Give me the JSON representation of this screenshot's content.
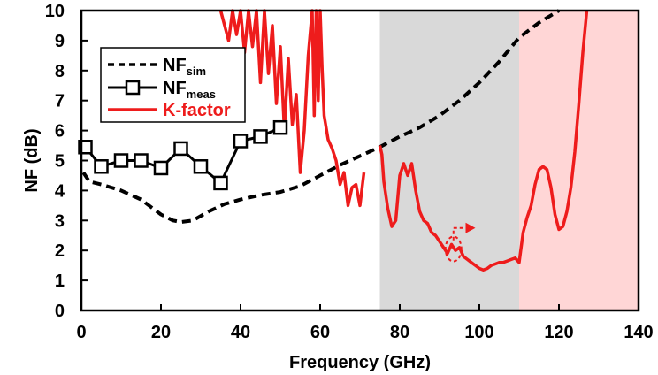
{
  "chart_data": {
    "type": "line",
    "title": "",
    "xlabel": "Frequency (GHz)",
    "ylabel": "NF (dB)",
    "xlim": [
      0,
      140
    ],
    "ylim": [
      0,
      10
    ],
    "xticks": [
      0,
      20,
      40,
      60,
      80,
      100,
      120,
      140
    ],
    "yticks": [
      0,
      1,
      2,
      3,
      4,
      5,
      6,
      7,
      8,
      9,
      10
    ],
    "grid": false,
    "legend_position": "top-left",
    "shaded_regions": [
      {
        "x_start": 75,
        "x_end": 110,
        "color": "#d9d9d9"
      },
      {
        "x_start": 110,
        "x_end": 140,
        "color": "#ffd6d6"
      }
    ],
    "series": [
      {
        "name": "NF",
        "name_sub": "sim",
        "style": "dashed",
        "color": "#000000",
        "points": [
          [
            0.5,
            4.6
          ],
          [
            2,
            4.3
          ],
          [
            5,
            4.2
          ],
          [
            10,
            4.0
          ],
          [
            15,
            3.7
          ],
          [
            20,
            3.2
          ],
          [
            23,
            3.0
          ],
          [
            25,
            2.95
          ],
          [
            28,
            3.0
          ],
          [
            32,
            3.3
          ],
          [
            36,
            3.55
          ],
          [
            40,
            3.7
          ],
          [
            45,
            3.85
          ],
          [
            50,
            3.95
          ],
          [
            55,
            4.15
          ],
          [
            60,
            4.5
          ],
          [
            65,
            4.85
          ],
          [
            70,
            5.15
          ],
          [
            75,
            5.45
          ],
          [
            80,
            5.8
          ],
          [
            85,
            6.1
          ],
          [
            90,
            6.5
          ],
          [
            95,
            7.0
          ],
          [
            100,
            7.6
          ],
          [
            105,
            8.3
          ],
          [
            110,
            9.1
          ],
          [
            115,
            9.6
          ],
          [
            120,
            10.0
          ]
        ]
      },
      {
        "name": "NF",
        "name_sub": "meas",
        "style": "solid-square-markers",
        "color": "#000000",
        "points": [
          [
            1,
            5.45
          ],
          [
            5,
            4.8
          ],
          [
            10,
            5.0
          ],
          [
            15,
            5.0
          ],
          [
            20,
            4.75
          ],
          [
            25,
            5.4
          ],
          [
            30,
            4.8
          ],
          [
            35,
            4.25
          ],
          [
            40,
            5.65
          ],
          [
            45,
            5.8
          ],
          [
            50,
            6.1
          ]
        ]
      },
      {
        "name": "K-factor",
        "name_sub": "",
        "style": "solid",
        "color": "#ee1c1c",
        "segments": [
          [
            [
              35,
              10.0
            ],
            [
              37,
              9.0
            ],
            [
              38,
              10.0
            ],
            [
              39,
              9.2
            ],
            [
              40,
              10.0
            ],
            [
              41,
              8.6
            ],
            [
              42,
              10.0
            ],
            [
              43,
              8.8
            ],
            [
              44,
              10.0
            ],
            [
              45,
              7.6
            ],
            [
              46,
              10.0
            ],
            [
              47,
              7.9
            ],
            [
              48,
              9.5
            ],
            [
              49,
              6.9
            ],
            [
              50,
              8.8
            ],
            [
              51,
              6.0
            ],
            [
              52,
              8.4
            ],
            [
              53,
              6.2
            ],
            [
              54,
              7.2
            ],
            [
              55,
              4.6
            ],
            [
              56,
              6.0
            ],
            [
              57,
              8.5
            ],
            [
              58,
              10.0
            ],
            [
              58.5,
              6.5
            ],
            [
              59,
              10.0
            ],
            [
              59.5,
              7.0
            ],
            [
              60,
              10.0
            ],
            [
              60.5,
              8.0
            ],
            [
              61,
              6.5
            ],
            [
              62,
              5.7
            ],
            [
              63,
              5.4
            ],
            [
              64,
              5.0
            ],
            [
              65,
              4.2
            ],
            [
              66,
              4.6
            ],
            [
              67,
              3.5
            ],
            [
              68,
              4.1
            ],
            [
              69,
              4.2
            ],
            [
              70,
              3.5
            ],
            [
              71,
              4.6
            ]
          ],
          [
            [
              75,
              5.5
            ],
            [
              75.5,
              5.2
            ],
            [
              76,
              4.3
            ],
            [
              77,
              3.4
            ],
            [
              78,
              2.8
            ],
            [
              79,
              3.0
            ],
            [
              80,
              4.5
            ],
            [
              81,
              4.9
            ],
            [
              82,
              4.5
            ],
            [
              83,
              4.9
            ],
            [
              84,
              4.0
            ],
            [
              85,
              3.3
            ],
            [
              86,
              3.0
            ],
            [
              87,
              2.9
            ],
            [
              88,
              2.6
            ],
            [
              89,
              2.5
            ],
            [
              90,
              2.3
            ],
            [
              91,
              2.1
            ],
            [
              92,
              1.9
            ],
            [
              93,
              2.2
            ],
            [
              94,
              2.0
            ],
            [
              95,
              2.1
            ],
            [
              96,
              1.8
            ],
            [
              97,
              1.7
            ],
            [
              98,
              1.6
            ],
            [
              99,
              1.5
            ],
            [
              100,
              1.4
            ],
            [
              101,
              1.35
            ],
            [
              102,
              1.4
            ],
            [
              103,
              1.5
            ],
            [
              104,
              1.55
            ],
            [
              105,
              1.6
            ],
            [
              106,
              1.6
            ],
            [
              107,
              1.65
            ],
            [
              108,
              1.7
            ],
            [
              109,
              1.75
            ],
            [
              110,
              1.6
            ],
            [
              111,
              2.6
            ],
            [
              112,
              3.1
            ],
            [
              113,
              3.5
            ],
            [
              114,
              4.2
            ],
            [
              115,
              4.7
            ],
            [
              116,
              4.8
            ],
            [
              117,
              4.7
            ],
            [
              118,
              4.1
            ],
            [
              119,
              3.2
            ],
            [
              120,
              2.7
            ],
            [
              121,
              2.8
            ],
            [
              122,
              3.3
            ],
            [
              123,
              4.1
            ],
            [
              124,
              5.3
            ],
            [
              125,
              6.9
            ],
            [
              126,
              8.6
            ],
            [
              127,
              10.0
            ]
          ]
        ]
      }
    ],
    "annotations": [
      {
        "type": "dashed-ellipse",
        "x": 93.5,
        "y": 2.05,
        "color": "#ee1c1c"
      },
      {
        "type": "dashed-arrow",
        "x_from": 93.5,
        "y_from": 2.75,
        "x_to": 99,
        "y_to": 2.75,
        "color": "#ee1c1c"
      }
    ]
  }
}
